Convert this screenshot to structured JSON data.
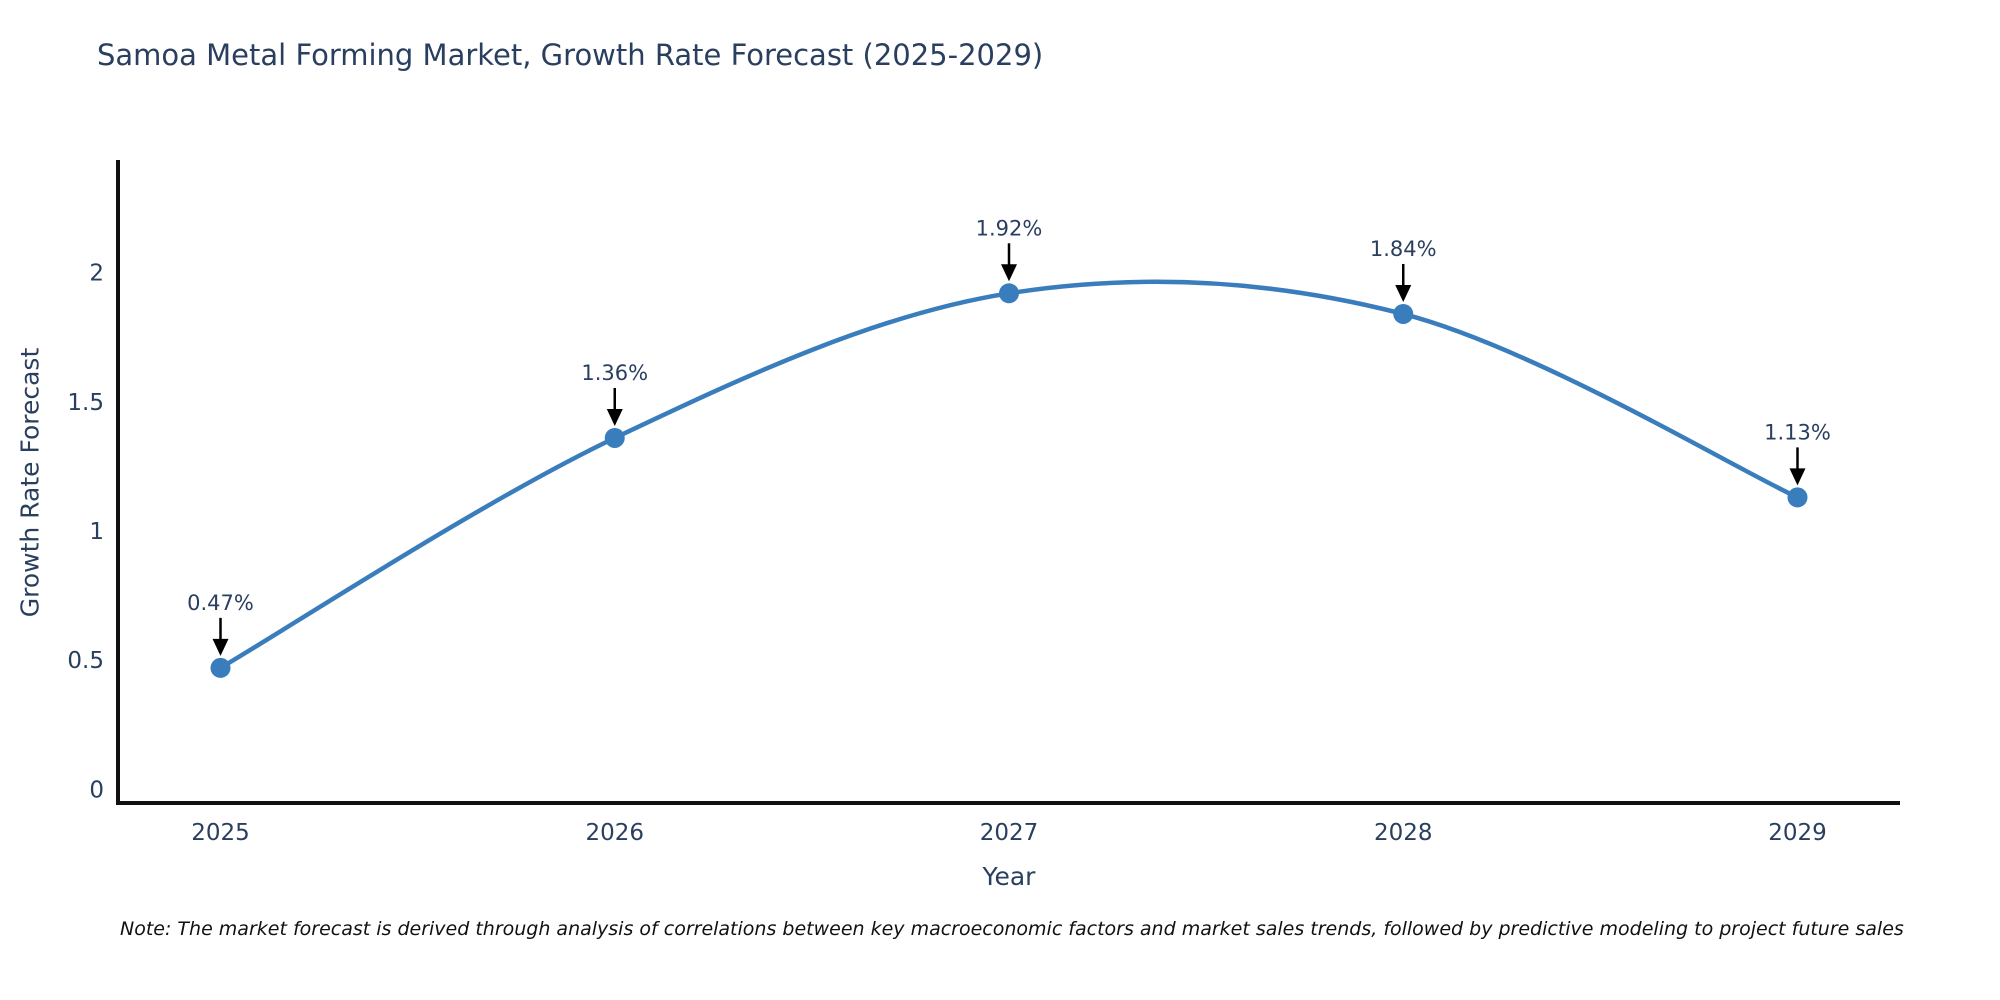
{
  "chart": {
    "title": "Samoa Metal Forming Market, Growth Rate Forecast (2025-2029)",
    "xlabel": "Year",
    "ylabel": "Growth Rate Forecast",
    "note": "Note: The market forecast is derived through analysis of correlations between key macroeconomic factors and market sales trends, followed by predictive modeling to project future sales"
  },
  "chart_data": {
    "type": "line",
    "line_shape": "spline",
    "x": [
      2025,
      2026,
      2027,
      2028,
      2029
    ],
    "x_tick_labels": [
      "2025",
      "2026",
      "2027",
      "2028",
      "2029"
    ],
    "series": [
      {
        "name": "Growth Rate Forecast",
        "values": [
          0.47,
          1.36,
          1.92,
          1.84,
          1.13
        ]
      }
    ],
    "point_labels": [
      "0.47%",
      "1.36%",
      "1.92%",
      "1.84%",
      "1.13%"
    ],
    "title": "Samoa Metal Forming Market, Growth Rate Forecast (2025-2029)",
    "xlabel": "Year",
    "ylabel": "Growth Rate Forecast",
    "xlim": [
      2024.74,
      2029.26
    ],
    "ylim": [
      -0.053,
      2.436
    ],
    "yticks": [
      0,
      0.5,
      1,
      1.5,
      2
    ],
    "ytick_labels": [
      "0",
      "0.5",
      "1",
      "1.5",
      "2"
    ],
    "grid": false,
    "legend_position": "none",
    "colors": {
      "line": "#3a7dbd",
      "marker": "#3a7dbd",
      "axis": "#111111",
      "tick_text": "#2a3f5f",
      "annotation_text": "#2a3f5f",
      "arrow": "#000000",
      "background": "#ffffff"
    }
  }
}
